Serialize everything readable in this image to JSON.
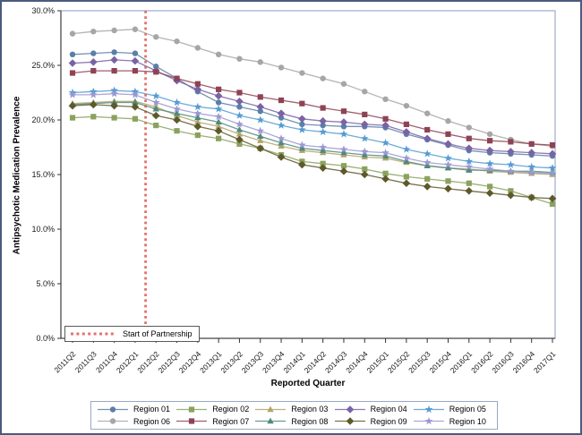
{
  "y_axis": {
    "title": "Antipsychotic Medication Prevalence",
    "tick_labels": [
      "0.0%",
      "5.0%",
      "10.0%",
      "15.0%",
      "20.0%",
      "25.0%",
      "30.0%"
    ],
    "tick_values": [
      0,
      5,
      10,
      15,
      20,
      25,
      30
    ]
  },
  "x_axis": {
    "title": "Reported Quarter"
  },
  "reference_line": {
    "label": "Start of Partnership",
    "color": "#e2736c",
    "x_between": [
      "2012Q1",
      "2012Q2"
    ]
  },
  "chart_data": {
    "type": "line",
    "title": "",
    "xlabel": "Reported Quarter",
    "ylabel": "Antipsychotic Medication Prevalence",
    "ylim": [
      0,
      30
    ],
    "grid": false,
    "legend_position": "bottom",
    "x": [
      "2011Q2",
      "2011Q3",
      "2011Q4",
      "2012Q1",
      "2012Q2",
      "2012Q3",
      "2012Q4",
      "2013Q1",
      "2013Q2",
      "2013Q3",
      "2013Q4",
      "2014Q1",
      "2014Q2",
      "2014Q3",
      "2014Q4",
      "2015Q1",
      "2015Q2",
      "2015Q3",
      "2015Q4",
      "2016Q1",
      "2016Q2",
      "2016Q3",
      "2016Q4",
      "2017Q1"
    ],
    "series": [
      {
        "name": "Region 01",
        "marker": "circle",
        "color": "#5a7fa8",
        "values": [
          26.0,
          26.1,
          26.2,
          26.1,
          24.9,
          23.8,
          22.6,
          21.6,
          21.2,
          20.8,
          20.2,
          19.6,
          19.5,
          19.4,
          19.4,
          19.3,
          18.7,
          18.2,
          17.7,
          17.2,
          17.0,
          16.9,
          16.8,
          16.7
        ]
      },
      {
        "name": "Region 02",
        "marker": "square",
        "color": "#8ba25e",
        "values": [
          20.2,
          20.3,
          20.2,
          20.1,
          19.5,
          19.0,
          18.6,
          18.3,
          17.8,
          17.4,
          16.8,
          16.2,
          16.0,
          15.8,
          15.5,
          15.1,
          14.8,
          14.6,
          14.4,
          14.2,
          13.9,
          13.5,
          12.9,
          12.3
        ]
      },
      {
        "name": "Region 03",
        "marker": "triangle",
        "color": "#b3a369",
        "values": [
          21.5,
          21.6,
          21.7,
          21.7,
          21.2,
          20.4,
          19.8,
          19.4,
          18.7,
          18.1,
          17.6,
          17.2,
          17.0,
          16.8,
          16.6,
          16.5,
          16.1,
          15.8,
          15.6,
          15.5,
          15.3,
          15.2,
          15.1,
          15.0
        ]
      },
      {
        "name": "Region 04",
        "marker": "diamond",
        "color": "#7a63a5",
        "values": [
          25.2,
          25.3,
          25.5,
          25.4,
          24.5,
          23.6,
          22.8,
          22.2,
          21.7,
          21.2,
          20.6,
          20.1,
          19.9,
          19.8,
          19.6,
          19.5,
          18.9,
          18.3,
          17.8,
          17.4,
          17.2,
          17.1,
          17.0,
          16.9
        ]
      },
      {
        "name": "Region 05",
        "marker": "star",
        "color": "#559bd1",
        "values": [
          22.5,
          22.6,
          22.7,
          22.6,
          22.2,
          21.6,
          21.2,
          21.0,
          20.4,
          20.0,
          19.5,
          19.1,
          18.9,
          18.7,
          18.3,
          17.9,
          17.3,
          16.9,
          16.5,
          16.2,
          16.0,
          15.9,
          15.7,
          15.6
        ]
      },
      {
        "name": "Region 06",
        "marker": "circle",
        "color": "#a6a6a6",
        "values": [
          27.9,
          28.1,
          28.2,
          28.3,
          27.6,
          27.2,
          26.6,
          26.0,
          25.6,
          25.3,
          24.8,
          24.3,
          23.8,
          23.3,
          22.6,
          21.9,
          21.3,
          20.6,
          19.9,
          19.3,
          18.7,
          18.2,
          17.8,
          17.6
        ]
      },
      {
        "name": "Region 07",
        "marker": "square",
        "color": "#8e4354",
        "values": [
          24.3,
          24.5,
          24.5,
          24.5,
          24.4,
          23.8,
          23.3,
          22.8,
          22.5,
          22.1,
          21.8,
          21.5,
          21.1,
          20.8,
          20.5,
          20.1,
          19.6,
          19.1,
          18.7,
          18.3,
          18.1,
          18.0,
          17.8,
          17.7
        ]
      },
      {
        "name": "Region 08",
        "marker": "triangle",
        "color": "#4f8a7c",
        "values": [
          21.4,
          21.5,
          21.6,
          21.6,
          21.0,
          20.6,
          20.2,
          19.8,
          19.1,
          18.5,
          17.9,
          17.4,
          17.2,
          17.0,
          16.8,
          16.7,
          16.2,
          15.8,
          15.6,
          15.4,
          15.4,
          15.3,
          15.3,
          15.2
        ]
      },
      {
        "name": "Region 09",
        "marker": "diamond",
        "color": "#5e592b",
        "values": [
          21.3,
          21.4,
          21.3,
          21.2,
          20.4,
          20.0,
          19.4,
          19.0,
          18.2,
          17.4,
          16.6,
          15.9,
          15.6,
          15.3,
          15.0,
          14.6,
          14.2,
          13.9,
          13.7,
          13.5,
          13.3,
          13.1,
          12.9,
          12.8
        ]
      },
      {
        "name": "Region 10",
        "marker": "star",
        "color": "#9c98d2",
        "values": [
          22.3,
          22.3,
          22.4,
          22.3,
          21.6,
          21.0,
          20.6,
          20.3,
          19.6,
          19.0,
          18.3,
          17.7,
          17.5,
          17.3,
          17.1,
          17.0,
          16.5,
          16.1,
          15.9,
          15.7,
          15.5,
          15.3,
          15.2,
          15.1
        ]
      }
    ]
  }
}
